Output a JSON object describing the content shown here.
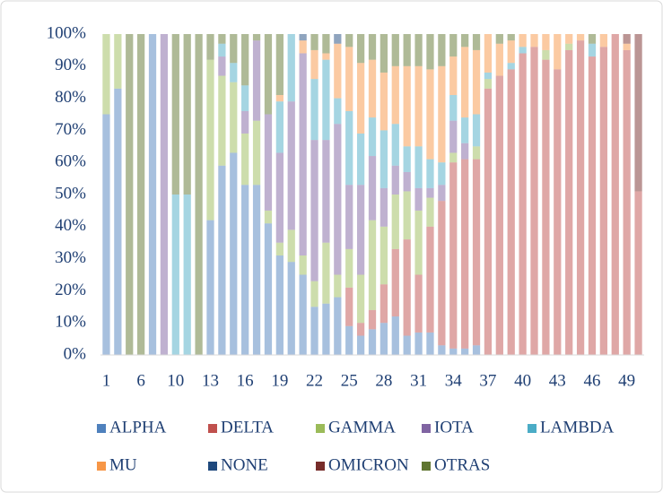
{
  "chart_data": {
    "type": "stacked_bar_percent",
    "categories": [
      "1",
      null,
      null,
      "6",
      null,
      null,
      "10",
      null,
      null,
      "13",
      null,
      null,
      "16",
      null,
      null,
      "19",
      null,
      null,
      "22",
      null,
      null,
      "25",
      null,
      null,
      "28",
      null,
      null,
      "31",
      null,
      null,
      "34",
      null,
      null,
      "37",
      null,
      null,
      "40",
      null,
      null,
      "43",
      null,
      null,
      "46",
      null,
      null,
      "49",
      null
    ],
    "ylim": [
      0,
      100
    ],
    "yticks": [
      {
        "value": 0,
        "label": "0%"
      },
      {
        "value": 10,
        "label": "10%"
      },
      {
        "value": 20,
        "label": "20%"
      },
      {
        "value": 30,
        "label": "30%"
      },
      {
        "value": 40,
        "label": "40%"
      },
      {
        "value": 50,
        "label": "50%"
      },
      {
        "value": 60,
        "label": "60%"
      },
      {
        "value": 70,
        "label": "70%"
      },
      {
        "value": 80,
        "label": "80%"
      },
      {
        "value": 90,
        "label": "90%"
      },
      {
        "value": 100,
        "label": "100%"
      }
    ],
    "grid": false,
    "legend": "bottom",
    "series": [
      {
        "name": "ALPHA",
        "color": "#4f81bd",
        "values": [
          75,
          83,
          0,
          0,
          100,
          0,
          0,
          0,
          0,
          42,
          59,
          63,
          53,
          53,
          41,
          31,
          29,
          25,
          15,
          16,
          18,
          9,
          6,
          8,
          10,
          12,
          6,
          7,
          7,
          3,
          2,
          2,
          3,
          0,
          0,
          0,
          0,
          0,
          0,
          0,
          0,
          0,
          0,
          0,
          0,
          0,
          0
        ]
      },
      {
        "name": "DELTA",
        "color": "#c0504d",
        "values": [
          0,
          0,
          0,
          0,
          0,
          0,
          0,
          0,
          0,
          0,
          0,
          0,
          0,
          0,
          0,
          0,
          0,
          0,
          0,
          0,
          0,
          12,
          4,
          6,
          12,
          21,
          30,
          18,
          33,
          45,
          58,
          59,
          58,
          83,
          87,
          89,
          94,
          96,
          92,
          89,
          95,
          98,
          93,
          96,
          100,
          95,
          51
        ]
      },
      {
        "name": "GAMMA",
        "color": "#9bbb59",
        "values": [
          25,
          17,
          0,
          0,
          0,
          0,
          0,
          0,
          0,
          50,
          28,
          22,
          16,
          20,
          4,
          4,
          10,
          6,
          8,
          19,
          7,
          12,
          15,
          28,
          18,
          17,
          15,
          20,
          9,
          0,
          3,
          0,
          4,
          3,
          0,
          0,
          0,
          0,
          3,
          0,
          2,
          0,
          0,
          0,
          0,
          0,
          0
        ]
      },
      {
        "name": "IOTA",
        "color": "#8064a2",
        "values": [
          0,
          0,
          0,
          0,
          0,
          100,
          0,
          0,
          0,
          0,
          6,
          0,
          7,
          25,
          30,
          28,
          40,
          63,
          44,
          32,
          47,
          20,
          28,
          20,
          12,
          9,
          6,
          7,
          3,
          5,
          10,
          5,
          0,
          0,
          0,
          0,
          0,
          0,
          0,
          0,
          0,
          0,
          0,
          0,
          0,
          0,
          0
        ]
      },
      {
        "name": "LAMBDA",
        "color": "#4bacc6",
        "values": [
          0,
          0,
          0,
          0,
          0,
          0,
          50,
          50,
          0,
          0,
          4,
          6,
          8,
          0,
          0,
          16,
          21,
          0,
          19,
          25,
          8,
          23,
          16,
          12,
          18,
          13,
          8,
          13,
          9,
          7,
          8,
          8,
          10,
          2,
          0,
          2,
          2,
          0,
          0,
          0,
          0,
          0,
          4,
          0,
          0,
          0,
          0
        ]
      },
      {
        "name": "MU",
        "color": "#f79646",
        "values": [
          0,
          0,
          0,
          0,
          0,
          0,
          0,
          0,
          0,
          0,
          0,
          0,
          0,
          0,
          0,
          2,
          0,
          4,
          9,
          2,
          17,
          20,
          22,
          18,
          18,
          18,
          25,
          25,
          28,
          30,
          12,
          22,
          20,
          12,
          10,
          7,
          4,
          4,
          5,
          11,
          3,
          2,
          0,
          4,
          0,
          2,
          0
        ]
      },
      {
        "name": "NONE",
        "color": "#1f497d",
        "values": [
          0,
          0,
          0,
          0,
          0,
          0,
          0,
          0,
          0,
          0,
          0,
          0,
          0,
          0,
          0,
          0,
          0,
          2,
          0,
          0,
          3,
          0,
          0,
          0,
          0,
          0,
          0,
          0,
          0,
          0,
          0,
          0,
          0,
          0,
          0,
          0,
          0,
          0,
          0,
          0,
          0,
          0,
          0,
          0,
          0,
          0,
          0
        ]
      },
      {
        "name": "OMICRON",
        "color": "#772c2a",
        "values": [
          0,
          0,
          0,
          0,
          0,
          0,
          0,
          0,
          0,
          0,
          0,
          0,
          0,
          0,
          0,
          0,
          0,
          0,
          0,
          0,
          0,
          0,
          0,
          0,
          0,
          0,
          0,
          0,
          0,
          0,
          0,
          0,
          0,
          0,
          0,
          0,
          0,
          0,
          0,
          0,
          0,
          0,
          0,
          0,
          0,
          3,
          49
        ]
      },
      {
        "name": "OTRAS",
        "color": "#5f7530",
        "values": [
          0,
          0,
          100,
          100,
          0,
          0,
          50,
          50,
          100,
          8,
          3,
          9,
          16,
          2,
          25,
          19,
          0,
          0,
          5,
          6,
          0,
          4,
          9,
          8,
          12,
          10,
          10,
          10,
          11,
          10,
          7,
          4,
          5,
          0,
          3,
          2,
          0,
          0,
          0,
          0,
          0,
          0,
          3,
          0,
          0,
          0,
          0
        ]
      }
    ]
  }
}
